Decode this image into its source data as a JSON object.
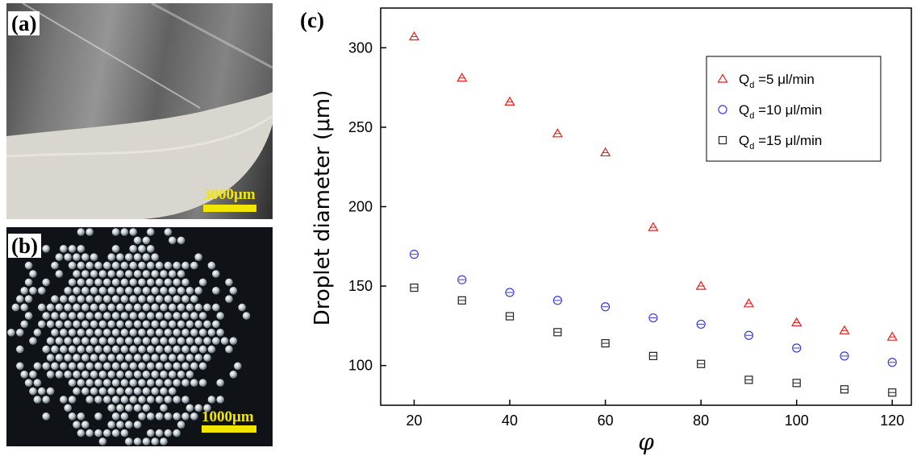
{
  "panels": {
    "a": {
      "label": "(a)",
      "scale_text": "3000μm"
    },
    "b": {
      "label": "(b)",
      "scale_text": "1000μm"
    },
    "c": {
      "label": "(c)"
    }
  },
  "colors": {
    "series_5": "#e0201c",
    "series_10": "#3a3ad8",
    "series_15": "#222222",
    "scalebar": "#f2e600"
  },
  "chart_data": {
    "type": "scatter",
    "xlabel": "φ",
    "ylabel": "Droplet diameter (μm)",
    "xlim": [
      13,
      124
    ],
    "ylim": [
      75,
      325
    ],
    "xticks": [
      20,
      40,
      60,
      80,
      100,
      120
    ],
    "yticks": [
      100,
      150,
      200,
      250,
      300
    ],
    "legend_position": "top-right",
    "x": [
      20,
      30,
      40,
      50,
      60,
      70,
      80,
      90,
      100,
      110,
      120
    ],
    "series": [
      {
        "name": "Q_d =5 μl/min",
        "legend": {
          "prefix": "Q",
          "sub": "d",
          "suffix": " =5 μl/min"
        },
        "marker": "triangle",
        "color_key": "series_5",
        "values": [
          307,
          281,
          266,
          246,
          234,
          187,
          150,
          139,
          127,
          122,
          118
        ]
      },
      {
        "name": "Q_d =10 μl/min",
        "legend": {
          "prefix": "Q",
          "sub": "d",
          "suffix": " =10 μl/min"
        },
        "marker": "circle",
        "color_key": "series_10",
        "values": [
          170,
          154,
          146,
          141,
          137,
          130,
          126,
          119,
          111,
          106,
          102
        ]
      },
      {
        "name": "Q_d =15 μl/min",
        "legend": {
          "prefix": "Q",
          "sub": "d",
          "suffix": " =15 μl/min"
        },
        "marker": "square",
        "color_key": "series_15",
        "values": [
          149,
          141,
          131,
          121,
          114,
          106,
          101,
          91,
          89,
          85,
          83
        ]
      }
    ]
  }
}
